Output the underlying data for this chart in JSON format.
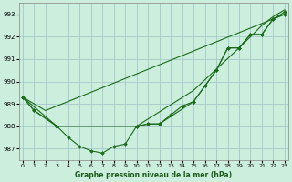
{
  "title": "Graphe pression niveau de la mer (hPa)",
  "bg_color": "#cceedd",
  "grid_color": "#aacccc",
  "line_color": "#1a6b1a",
  "x_ticks": [
    0,
    1,
    2,
    3,
    4,
    5,
    6,
    7,
    8,
    9,
    10,
    11,
    12,
    13,
    14,
    15,
    16,
    17,
    18,
    19,
    20,
    21,
    22,
    23
  ],
  "y_ticks": [
    987,
    988,
    989,
    990,
    991,
    992,
    993
  ],
  "ylim": [
    986.5,
    993.5
  ],
  "xlim": [
    -0.3,
    23.3
  ],
  "series": [
    {
      "x": [
        0,
        1,
        3,
        4,
        5,
        6,
        7,
        8,
        9,
        10,
        11,
        12,
        13,
        14,
        15,
        16,
        17,
        18,
        19,
        20,
        21,
        22,
        23
      ],
      "y": [
        989.3,
        988.7,
        988.0,
        987.5,
        987.1,
        986.9,
        986.8,
        987.1,
        987.2,
        988.0,
        988.1,
        988.1,
        988.5,
        988.9,
        989.1,
        989.8,
        990.5,
        991.5,
        991.5,
        992.1,
        992.1,
        992.8,
        993.0
      ],
      "marker": true
    },
    {
      "x": [
        0,
        1,
        3,
        10,
        11,
        12,
        15,
        16,
        17,
        18,
        19,
        20,
        21,
        22,
        23
      ],
      "y": [
        989.3,
        988.7,
        988.0,
        988.0,
        988.1,
        988.1,
        989.1,
        989.8,
        990.5,
        991.5,
        991.5,
        992.1,
        992.1,
        992.8,
        993.1
      ],
      "marker": true
    },
    {
      "x": [
        0,
        2,
        23
      ],
      "y": [
        989.3,
        988.7,
        993.0
      ],
      "marker": false
    },
    {
      "x": [
        0,
        3,
        10,
        15,
        19,
        21,
        22,
        23
      ],
      "y": [
        989.3,
        988.0,
        988.0,
        989.6,
        991.5,
        992.5,
        992.9,
        993.2
      ],
      "marker": false
    }
  ]
}
